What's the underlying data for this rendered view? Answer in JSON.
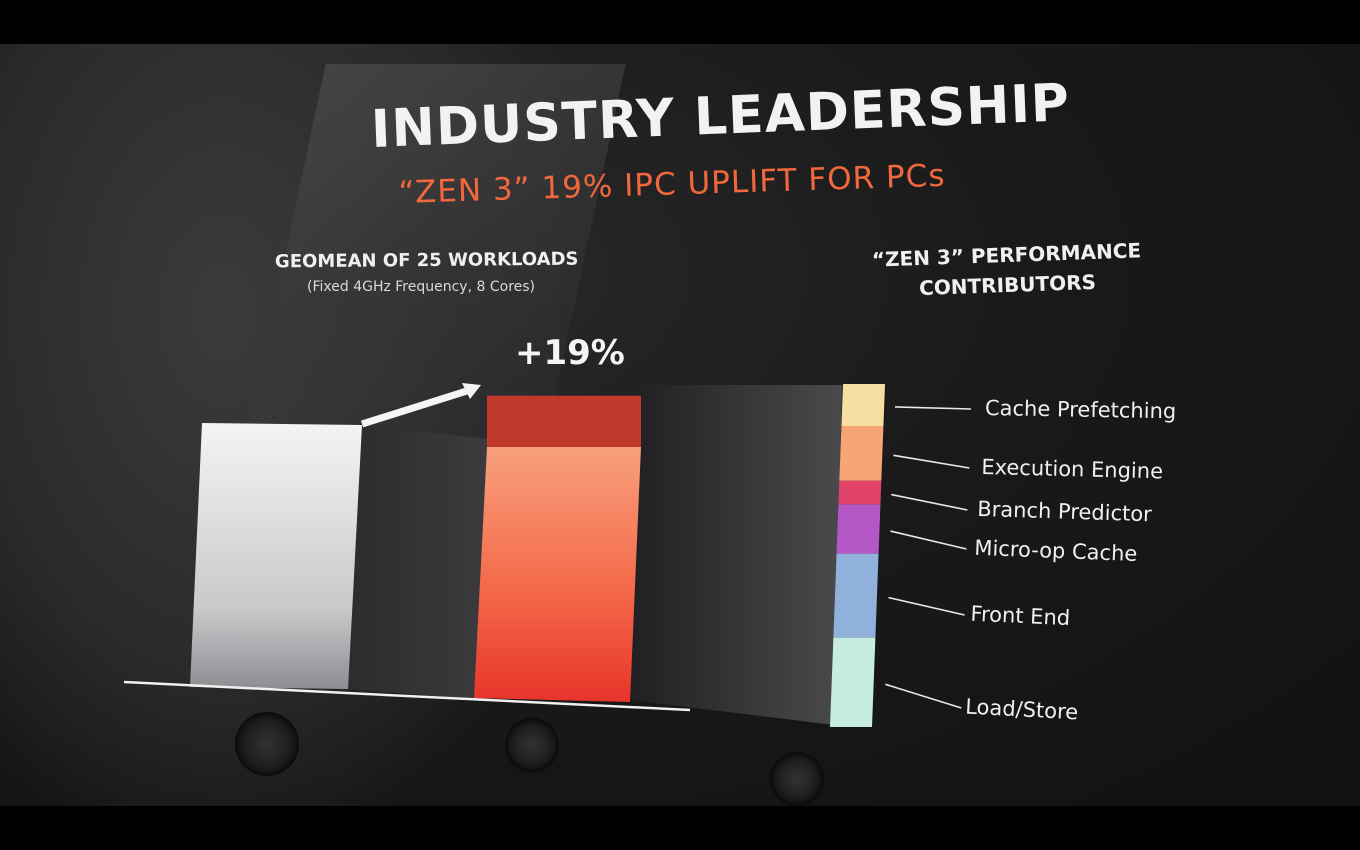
{
  "slide": {
    "title": "INDUSTRY LEADERSHIP",
    "subtitle": "“ZEN 3” 19% IPC UPLIFT FOR PCs",
    "left_heading": "GEOMEAN OF 25 WORKLOADS",
    "left_subheading": "(Fixed 4GHz Frequency, 8 Cores)",
    "right_heading_line1": "“ZEN 3” PERFORMANCE",
    "right_heading_line2": "CONTRIBUTORS"
  },
  "chart_data": [
    {
      "type": "bar",
      "categories": [
        "",
        ""
      ],
      "values": [
        100,
        119
      ],
      "ylim": [
        0,
        125
      ],
      "annotation": "+19%",
      "colors": {
        "base_bar": "#ececee",
        "zen3_bar": "#f4583f",
        "uplift_segment": "#c0392b"
      }
    },
    {
      "type": "bar",
      "stacked": true,
      "series": [
        {
          "name": "Cache Prefetching",
          "value": 2.3,
          "color": "#f6dfa0"
        },
        {
          "name": "Execution Engine",
          "value": 3.0,
          "color": "#f7a574"
        },
        {
          "name": "Branch Predictor",
          "value": 1.3,
          "color": "#e1436a"
        },
        {
          "name": "Micro-op Cache",
          "value": 2.7,
          "color": "#b458c8"
        },
        {
          "name": "Front End",
          "value": 4.6,
          "color": "#8fb1db"
        },
        {
          "name": "Load/Store",
          "value": 4.9,
          "color": "#c7ede0"
        }
      ],
      "legend": "right"
    }
  ]
}
